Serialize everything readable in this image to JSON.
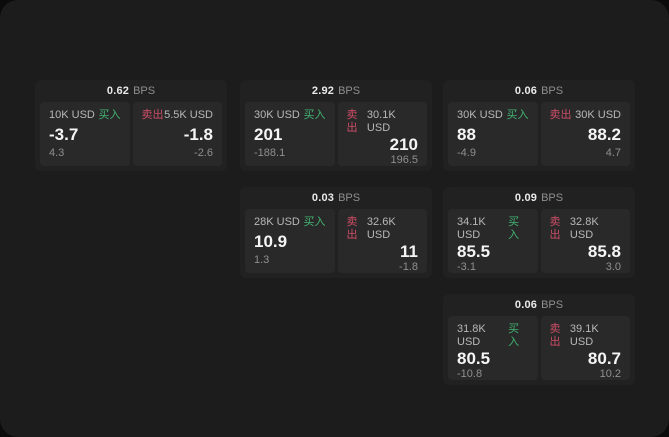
{
  "labels": {
    "bps_unit": "BPS",
    "buy": "买入",
    "sell": "卖出"
  },
  "colors": {
    "buy_accent": "#42b472",
    "sell_accent": "#cf4d66",
    "panel_background": "#1c1c1c",
    "card_background": "#212121",
    "tile_background": "#292929"
  },
  "cards": [
    {
      "bps": "0.62",
      "buy": {
        "size": "10K USD",
        "value": "-3.7",
        "delta": "4.3"
      },
      "sell": {
        "size": "5.5K USD",
        "value": "-1.8",
        "delta": "-2.6"
      }
    },
    {
      "bps": "2.92",
      "buy": {
        "size": "30K USD",
        "value": "201",
        "delta": "-188.1"
      },
      "sell": {
        "size": "30.1K USD",
        "value": "210",
        "delta": "196.5"
      }
    },
    {
      "bps": "0.06",
      "buy": {
        "size": "30K USD",
        "value": "88",
        "delta": "-4.9"
      },
      "sell": {
        "size": "30K USD",
        "value": "88.2",
        "delta": "4.7"
      }
    },
    {
      "bps": "0.03",
      "buy": {
        "size": "28K USD",
        "value": "10.9",
        "delta": "1.3"
      },
      "sell": {
        "size": "32.6K USD",
        "value": "11",
        "delta": "-1.8"
      }
    },
    {
      "bps": "0.09",
      "buy": {
        "size": "34.1K USD",
        "value": "85.5",
        "delta": "-3.1"
      },
      "sell": {
        "size": "32.8K USD",
        "value": "85.8",
        "delta": "3.0"
      }
    },
    {
      "bps": "0.06",
      "buy": {
        "size": "31.8K USD",
        "value": "80.5",
        "delta": "-10.8"
      },
      "sell": {
        "size": "39.1K USD",
        "value": "80.7",
        "delta": "10.2"
      }
    }
  ]
}
